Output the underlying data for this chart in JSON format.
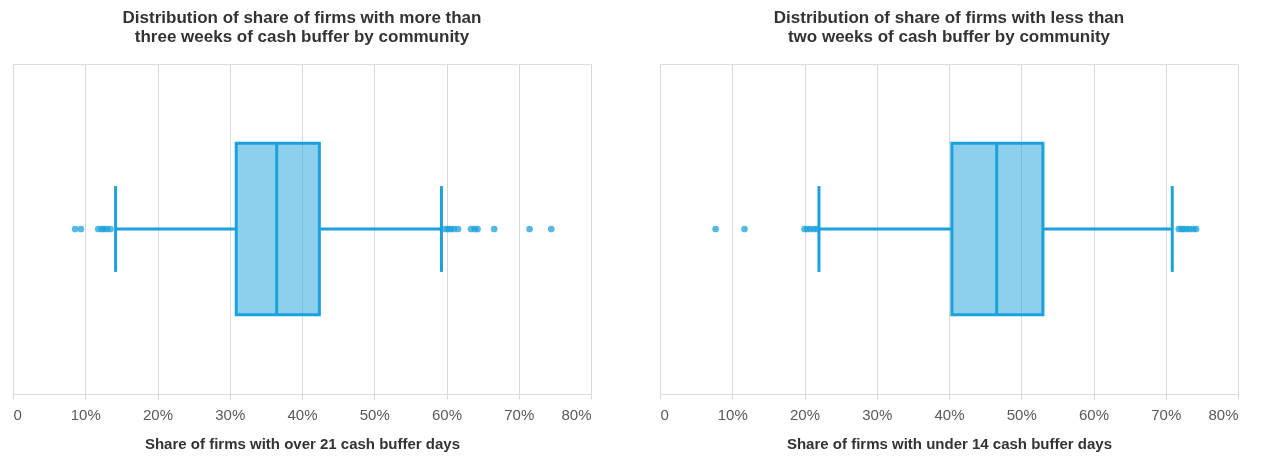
{
  "chart_data": [
    {
      "type": "box",
      "title": "Distribution of share of firms with more than three weeks of cash buffer by community",
      "xlabel": "Share of firms with over 21 cash buffer days",
      "orientation": "horizontal",
      "categories": [
        null
      ],
      "colors": [
        "#1ba1dc"
      ],
      "grid": "x",
      "xlim": [
        0,
        80
      ],
      "xticks": [
        0,
        {
          "value": 10,
          "label": "10%"
        },
        {
          "value": 20,
          "label": "20%"
        },
        {
          "value": 30,
          "label": "30%"
        },
        {
          "value": 40,
          "label": "40%"
        },
        {
          "value": 50,
          "label": "50%"
        },
        {
          "value": 60,
          "label": "60%"
        },
        {
          "value": 70,
          "label": "70%"
        },
        {
          "value": 80,
          "label": "80%"
        }
      ],
      "boxes": [
        {
          "low": 14.2,
          "q1": 30.9,
          "median": 36.5,
          "q3": 42.4,
          "high": 59.3,
          "outliers": [
            8.6,
            9.4,
            11.8,
            12.3,
            12.6,
            13.0,
            13.5,
            59.8,
            60.2,
            60.6,
            61.0,
            61.6,
            63.4,
            63.9,
            64.3,
            66.6,
            71.5,
            74.5
          ]
        }
      ]
    },
    {
      "type": "box",
      "title": "Distribution of share of firms with less than two weeks of cash buffer by community",
      "xlabel": "Share of firms with under 14 cash buffer days",
      "orientation": "horizontal",
      "categories": [
        null
      ],
      "colors": [
        "#1ba1dc"
      ],
      "grid": "x",
      "xlim": [
        0,
        80
      ],
      "xticks": [
        0,
        {
          "value": 10,
          "label": "10%"
        },
        {
          "value": 20,
          "label": "20%"
        },
        {
          "value": 30,
          "label": "30%"
        },
        {
          "value": 40,
          "label": "40%"
        },
        {
          "value": 50,
          "label": "50%"
        },
        {
          "value": 60,
          "label": "60%"
        },
        {
          "value": 70,
          "label": "70%"
        },
        {
          "value": 80,
          "label": "80%"
        }
      ],
      "boxes": [
        {
          "low": 22.0,
          "q1": 40.4,
          "median": 46.6,
          "q3": 53.0,
          "high": 70.9,
          "outliers": [
            7.7,
            11.7,
            20.0,
            20.4,
            20.8,
            21.3,
            21.7,
            71.8,
            72.2,
            72.5,
            72.9,
            73.3,
            73.8,
            74.2
          ]
        }
      ]
    }
  ]
}
